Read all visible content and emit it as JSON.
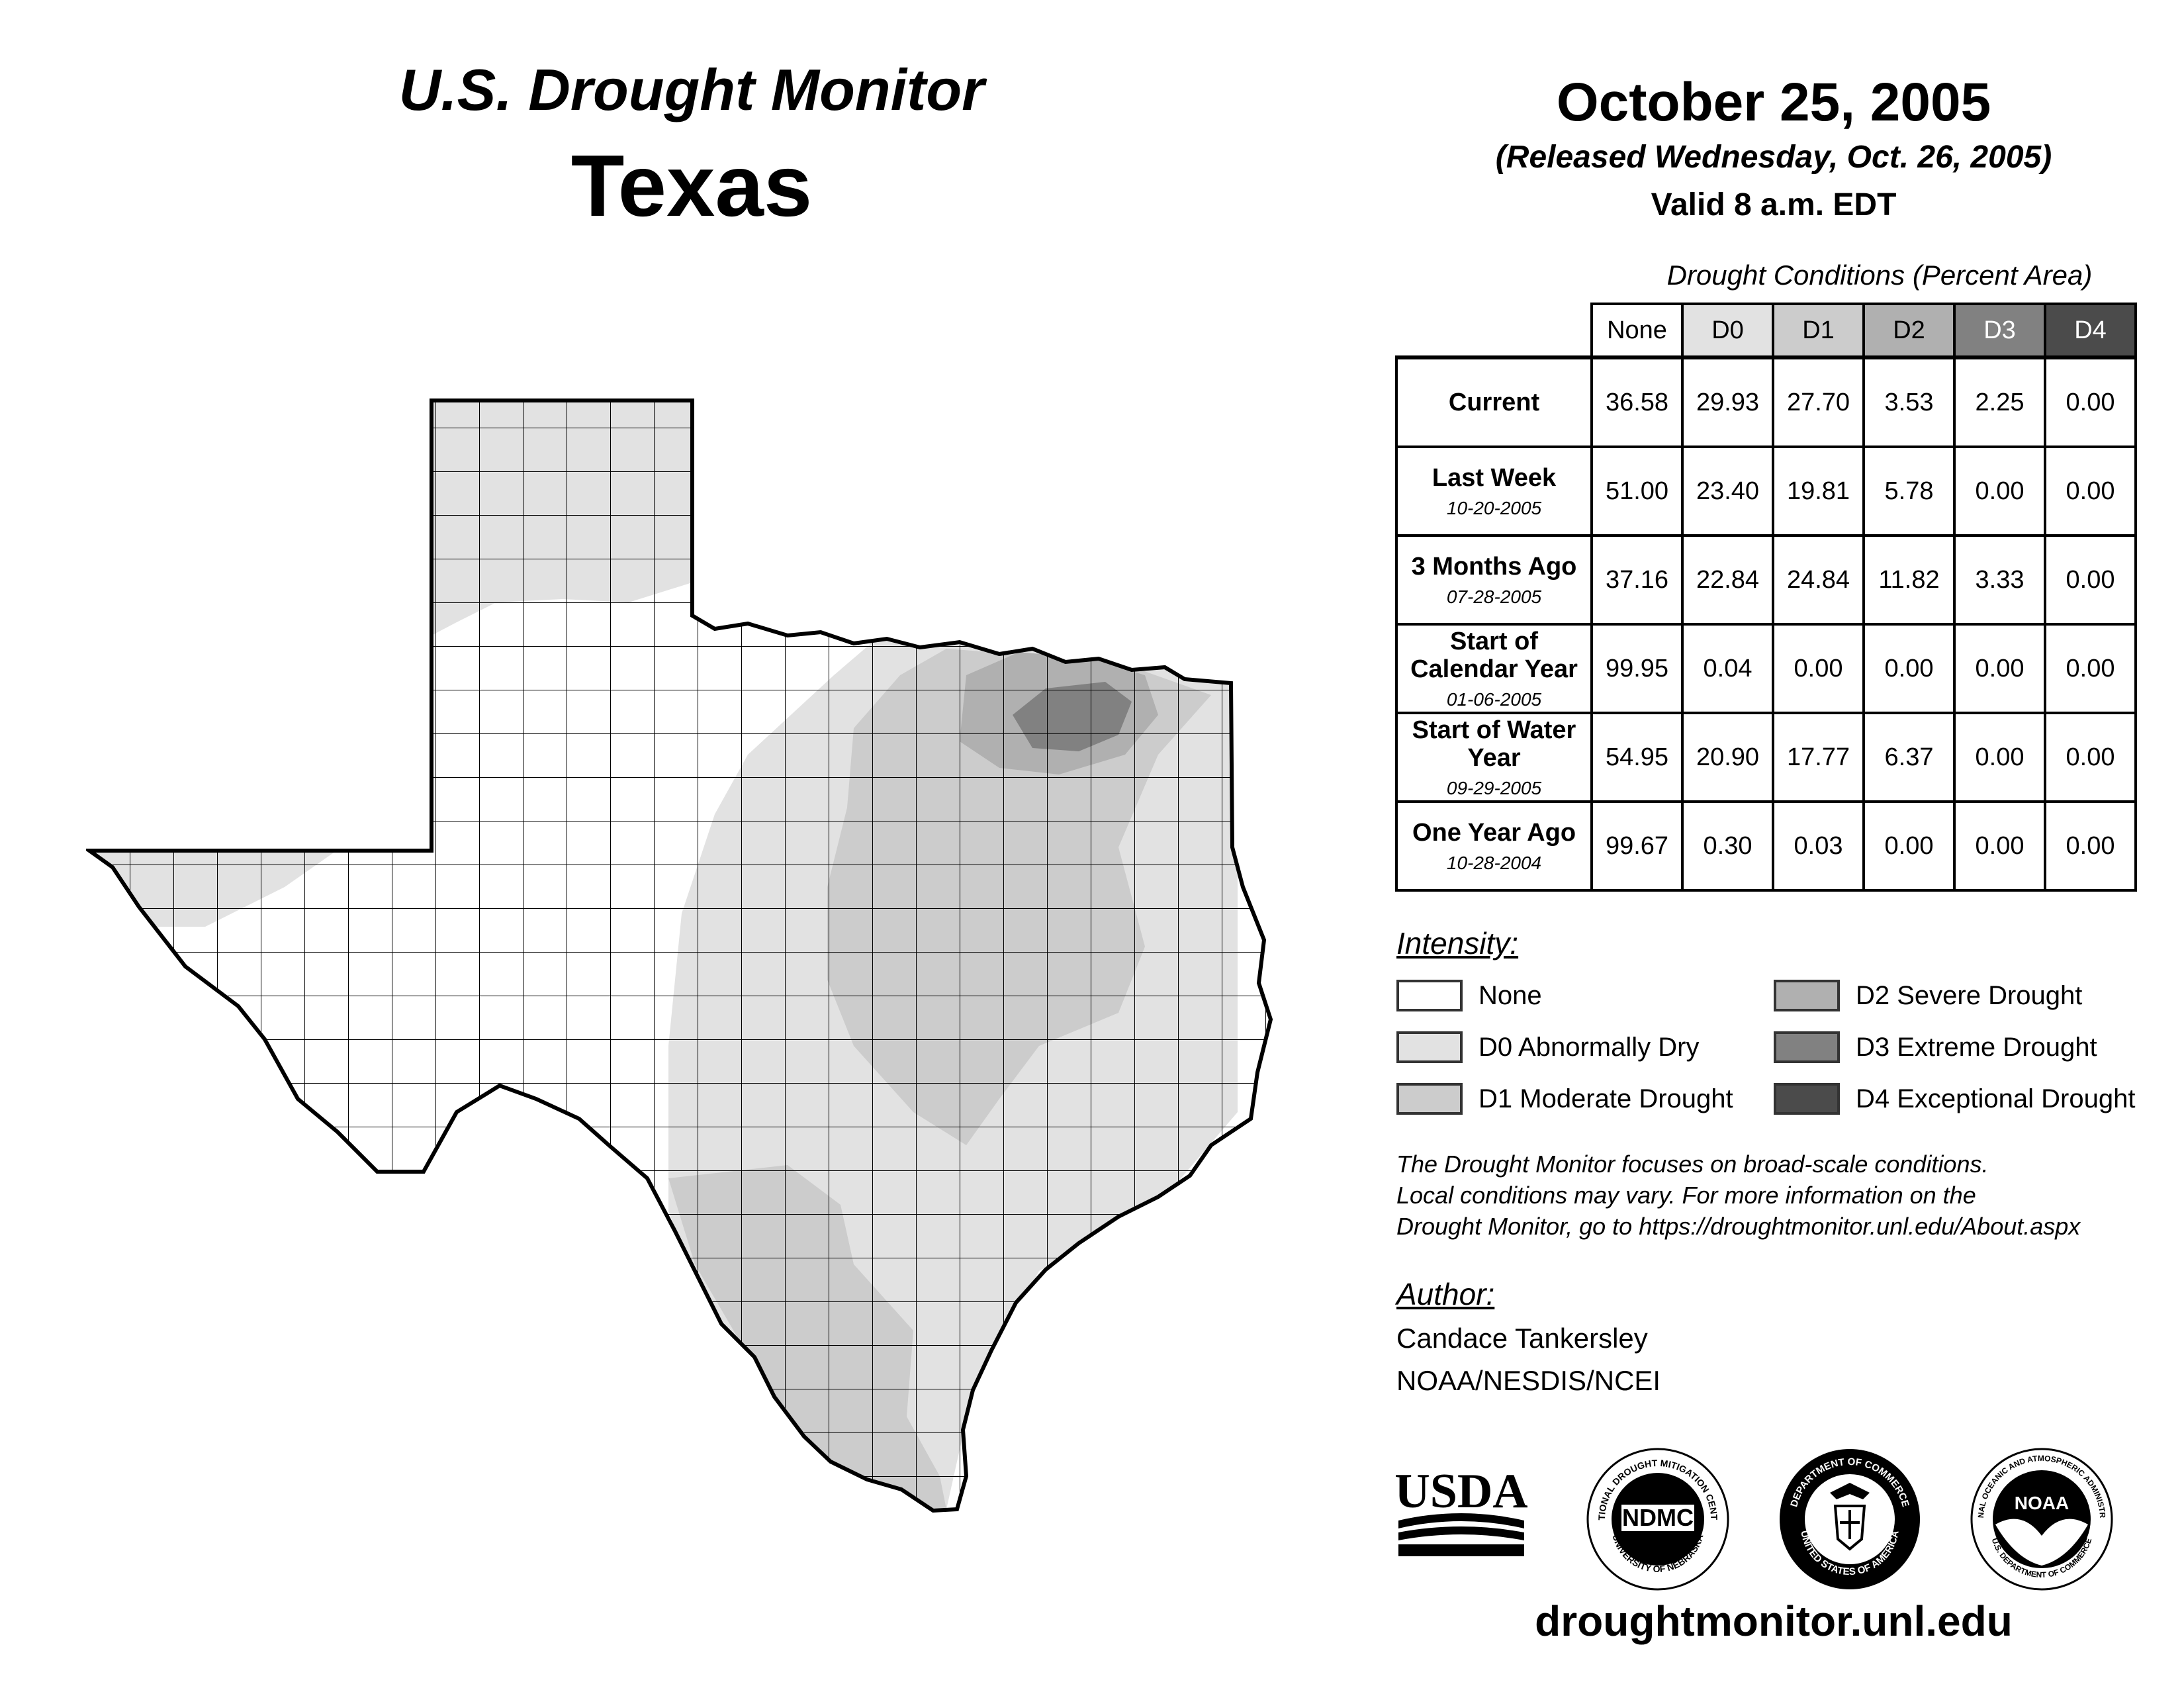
{
  "header": {
    "title": "U.S. Drought Monitor",
    "state": "Texas",
    "date": "October 25, 2005",
    "released": "(Released Wednesday, Oct. 26, 2005)",
    "valid": "Valid 8 a.m. EDT"
  },
  "table": {
    "caption": "Drought Conditions (Percent Area)",
    "columns": [
      "None",
      "D0",
      "D1",
      "D2",
      "D3",
      "D4"
    ],
    "rows": [
      {
        "label": "Current",
        "date": "",
        "values": [
          "36.58",
          "29.93",
          "27.70",
          "3.53",
          "2.25",
          "0.00"
        ]
      },
      {
        "label": "Last Week",
        "date": "10-20-2005",
        "values": [
          "51.00",
          "23.40",
          "19.81",
          "5.78",
          "0.00",
          "0.00"
        ]
      },
      {
        "label": "3 Months Ago",
        "date": "07-28-2005",
        "values": [
          "37.16",
          "22.84",
          "24.84",
          "11.82",
          "3.33",
          "0.00"
        ]
      },
      {
        "label": "Start of Calendar Year",
        "date": "01-06-2005",
        "values": [
          "99.95",
          "0.04",
          "0.00",
          "0.00",
          "0.00",
          "0.00"
        ]
      },
      {
        "label": "Start of Water Year",
        "date": "09-29-2005",
        "values": [
          "54.95",
          "20.90",
          "17.77",
          "6.37",
          "0.00",
          "0.00"
        ]
      },
      {
        "label": "One Year Ago",
        "date": "10-28-2004",
        "values": [
          "99.67",
          "0.30",
          "0.03",
          "0.00",
          "0.00",
          "0.00"
        ]
      }
    ]
  },
  "legend": {
    "title": "Intensity:",
    "items": [
      {
        "label": "None",
        "color": "#ffffff"
      },
      {
        "label": "D0 Abnormally Dry",
        "color": "#e2e2e2"
      },
      {
        "label": "D1 Moderate Drought",
        "color": "#cccccc"
      },
      {
        "label": "D2 Severe Drought",
        "color": "#b0b0b0"
      },
      {
        "label": "D3 Extreme Drought",
        "color": "#818181"
      },
      {
        "label": "D4 Exceptional Drought",
        "color": "#4b4b4b"
      }
    ]
  },
  "note": {
    "line1": "The Drought Monitor focuses on broad-scale conditions.",
    "line2": "Local conditions may vary. For more information on the",
    "line3": "Drought Monitor, go to https://droughtmonitor.unl.edu/About.aspx"
  },
  "author": {
    "title": "Author:",
    "name": "Candace Tankersley",
    "org": "NOAA/NESDIS/NCEI"
  },
  "logos": {
    "usda": "USDA",
    "ndmc": "NDMC",
    "ndmc_ring": "NATIONAL DROUGHT MITIGATION CENTER",
    "ndmc_ring_bottom": "UNIVERSITY OF NEBRASKA",
    "doc_ring": "DEPARTMENT OF COMMERCE",
    "doc_ring_bottom": "UNITED STATES OF AMERICA",
    "noaa": "NOAA",
    "noaa_ring": "NATIONAL OCEANIC AND ATMOSPHERIC ADMINISTRATION",
    "noaa_ring_bottom": "U.S. DEPARTMENT OF COMMERCE"
  },
  "footer": {
    "url": "droughtmonitor.unl.edu"
  },
  "map": {
    "state": "Texas",
    "max_category": "D3"
  }
}
